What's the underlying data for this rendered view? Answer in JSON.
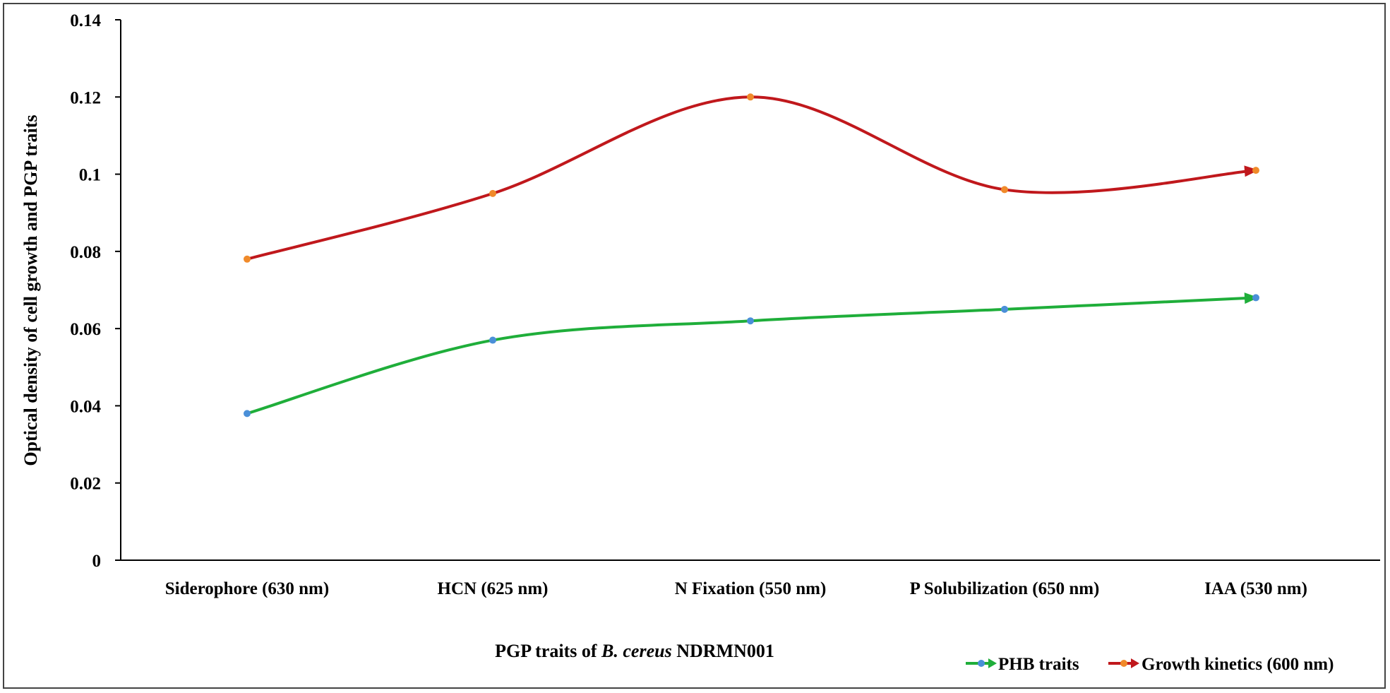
{
  "chart_data": {
    "type": "line",
    "categories": [
      "Siderophore (630 nm)",
      "HCN (625 nm)",
      "N Fixation (550 nm)",
      "P Solubilization (650 nm)",
      "IAA (530 nm)"
    ],
    "series": [
      {
        "name": "PHB traits",
        "values": [
          0.038,
          0.057,
          0.062,
          0.065,
          0.068
        ],
        "color": "#1fae3a",
        "marker_color": "#4a8fd8"
      },
      {
        "name": "Growth kinetics (600 nm)",
        "values": [
          0.078,
          0.095,
          0.12,
          0.096,
          0.101
        ],
        "color": "#c0181c",
        "marker_color": "#f08a2a"
      }
    ],
    "ylim": [
      0,
      0.14
    ],
    "yticks": [
      "0",
      "0.02",
      "0.04",
      "0.06",
      "0.08",
      "0.1",
      "0.12",
      "0.14"
    ],
    "ylabel": "Optical density of cell growth and PGP traits",
    "xlabel": {
      "prefix": "PGP traits of ",
      "italic": "B. cereus",
      "suffix": " NDRMN001"
    },
    "legend_position": "bottom-right",
    "grid": false,
    "smoothed": true
  }
}
